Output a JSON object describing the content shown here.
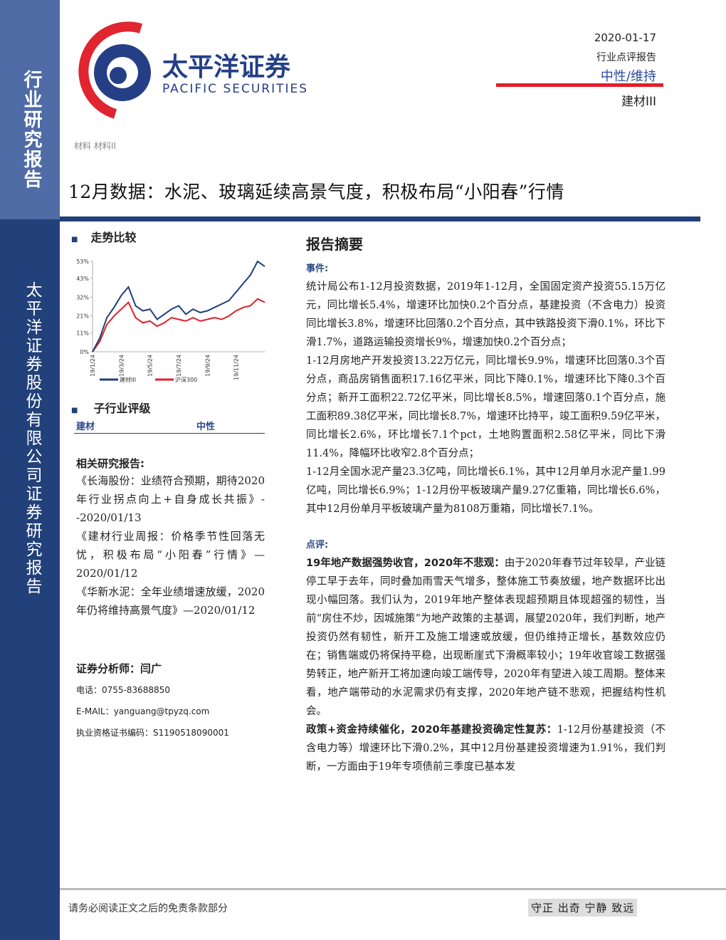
{
  "header": {
    "logo_cn": "太平洋证券",
    "logo_en": "PACIFIC SECURITIES",
    "date": "2020-01-17",
    "report_type": "行业点评报告",
    "rating": "中性/维持",
    "sector": "建材III",
    "breadcrumb": "材料 材料II"
  },
  "sidebar": {
    "top": "行业研究报告",
    "bottom": "太平洋证券股份有限公司证券研究报告"
  },
  "title": "12月数据：水泥、玻璃延续高景气度，积极布局“小阳春”行情",
  "left": {
    "trend_heading": "走势比较",
    "rating_heading": "子行业评级",
    "rating_sector": "建材",
    "rating_value": "中性",
    "related_heading": "相关研究报告:",
    "related": [
      "《长海股份：业绩符合预期，期待2020年行业拐点向上+自身成长共振》--2020/01/13",
      "《建材行业周报：价格季节性回落无忧，积极布局“小阳春”行情》—2020/01/12",
      "《华新水泥：全年业绩增速放缓，2020年仍将维持高景气度》—2020/01/12"
    ],
    "analyst": "证券分析师：闫广",
    "phone": "电话：0755-83688850",
    "email": "E-MAIL：yanguang@tpyzq.com",
    "cert": "执业资格证书编码：S1190518090001"
  },
  "chart_data": {
    "type": "line",
    "categories": [
      "19/1/24",
      null,
      null,
      null,
      "19/3/24",
      null,
      null,
      null,
      "19/5/24",
      null,
      null,
      null,
      "19/7/24",
      null,
      null,
      null,
      "19/9/24",
      null,
      null,
      null,
      "19/11/24",
      null,
      null,
      null,
      null
    ],
    "series": [
      {
        "name": "建材III",
        "color": "#1f3f7a",
        "values": [
          0,
          8,
          20,
          26,
          33,
          38,
          27,
          24,
          25,
          19,
          22,
          25,
          27,
          22,
          25,
          23,
          24,
          26,
          28,
          30,
          35,
          40,
          45,
          53,
          50
        ]
      },
      {
        "name": "沪深300",
        "color": "#e0202a",
        "values": [
          0,
          6,
          16,
          21,
          25,
          29,
          20,
          17,
          18,
          15,
          17,
          20,
          19,
          18,
          20,
          18,
          19,
          20,
          19,
          21,
          24,
          26,
          27,
          31,
          29
        ]
      }
    ],
    "ylim": [
      0,
      53
    ],
    "yticks": [
      {
        "value": 0,
        "label": "0%"
      },
      {
        "value": 11,
        "label": "11%"
      },
      {
        "value": 21,
        "label": "21%"
      },
      {
        "value": 32,
        "label": "32%"
      },
      {
        "value": 43,
        "label": "43%"
      },
      {
        "value": 53,
        "label": "53%"
      }
    ],
    "legend": "bottom"
  },
  "summary": {
    "heading": "报告摘要",
    "event_heading": "事件:",
    "event": [
      "统计局公布1-12月投资数据，2019年1-12月，全国固定资产投资55.15万亿元，同比增长5.4%，增速环比加快0.2个百分点，基建投资（不含电力）投资同比增长3.8%，增速环比回落0.2个百分点，其中铁路投资下滑0.1%，环比下滑1.7%，道路运输投资增长9%，增速加快0.2个百分点；",
      "1-12月房地产开发投资13.22万亿元，同比增长9.9%，增速环比回落0.3个百分点，商品房销售面积17.16亿平米，同比下降0.1%，增速环比下降0.3个百分点；新开工面积22.72亿平米，同比增长8.5%，增速回落0.1个百分点，施工面积89.38亿平米，同比增长8.7%，增速环比持平，竣工面积9.59亿平米，同比增长2.6%，环比增长7.1个pct，土地购置面积2.58亿平米，同比下滑11.4%，降幅环比收窄2.8个百分点；",
      "1-12月全国水泥产量23.3亿吨，同比增长6.1%，其中12月单月水泥产量1.99亿吨，同比增长6.9%；1-12月份平板玻璃产量9.27亿重箱，同比增长6.6%，其中12月份单月平板玻璃产量为8108万重箱，同比增长7.1%。"
    ],
    "comment_heading": "点评:",
    "comment": [
      {
        "lead": "19年地产数据强势收官，2020年不悲观：",
        "text": "由于2020年春节过年较早，产业链停工早于去年，同时叠加雨雪天气增多，整体施工节奏放缓，地产数据环比出现小幅回落。我们认为，2019年地产整体表现超预期且体现超强的韧性，当前“房住不炒，因城施策”为地产政策的主基调，展望2020年，我们判断，地产投资仍然有韧性，新开工及施工增速或放缓，但仍维持正增长，基数效应仍在；销售端或仍将保持平稳，出现断崖式下滑概率较小；19年收官竣工数据强势转正，地产新开工将加速向竣工端传导，2020年有望进入竣工周期。整体来看，地产端带动的水泥需求仍有支撑，2020年地产链不悲观，把握结构性机会。"
      },
      {
        "lead": "政策+资金持续催化，2020年基建投资确定性复苏：",
        "text": "1-12月份基建投资（不含电力等）增速环比下滑0.2%，其中12月份基建投资增速为1.91%，我们判断，一方面由于19年专项债前三季度已基本发"
      }
    ]
  },
  "footer": {
    "disclaimer": "请务必阅读正文之后的免责条款部分",
    "motto": "守正 出奇 宁静 致远"
  }
}
